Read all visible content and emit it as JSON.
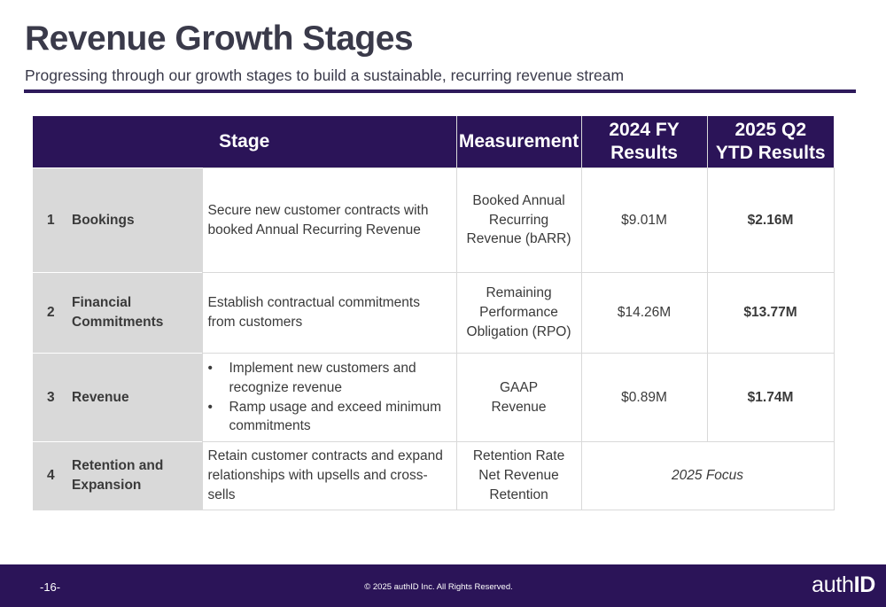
{
  "header": {
    "title": "Revenue Growth Stages",
    "subtitle": "Progressing through our growth stages to build a sustainable, recurring revenue stream"
  },
  "table": {
    "headers": {
      "stage": "Stage",
      "measurement": "Measurement",
      "fy2024_line1": "2024 FY",
      "fy2024_line2": "Results",
      "q2_2025_line1": "2025 Q2",
      "q2_2025_line2": "YTD Results"
    },
    "rows": [
      {
        "number": "1",
        "name": "Bookings",
        "description": "Secure new customer contracts with booked Annual Recurring Revenue",
        "measurement": "Booked Annual Recurring Revenue (bARR)",
        "fy2024": "$9.01M",
        "ytd2025": "$2.16M"
      },
      {
        "number": "2",
        "name": "Financial Commitments",
        "description": "Establish contractual commitments from customers",
        "measurement": "Remaining Performance Obligation (RPO)",
        "fy2024": "$14.26M",
        "ytd2025": "$13.77M"
      },
      {
        "number": "3",
        "name": "Revenue",
        "bullets": [
          "Implement new customers and recognize revenue",
          "Ramp usage and exceed minimum commitments"
        ],
        "measurement_line1": "GAAP",
        "measurement_line2": "Revenue",
        "fy2024": "$0.89M",
        "ytd2025": "$1.74M"
      },
      {
        "number": "4",
        "name": "Retention and Expansion",
        "description": "Retain customer contracts and expand relationships with upsells and cross-sells",
        "measurement_line1": "Retention Rate",
        "measurement_line2": "Net Revenue Retention",
        "focus": "2025 Focus"
      }
    ]
  },
  "footer": {
    "page_number": "-16-",
    "copyright": "© 2025 authID Inc. All Rights Reserved.",
    "logo_regular": "auth",
    "logo_bold": "ID"
  },
  "colors": {
    "brand_purple": "#2b1458",
    "row_label_gray": "#d9d9d9"
  }
}
